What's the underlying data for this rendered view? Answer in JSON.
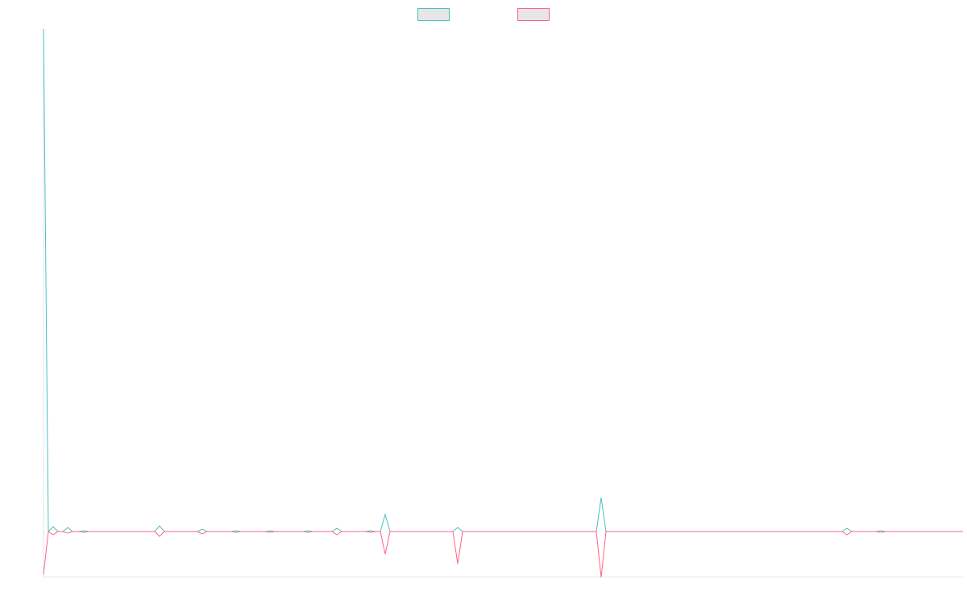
{
  "chart_data": {
    "type": "line",
    "x": [
      0,
      6,
      12,
      18,
      24,
      30,
      36,
      44,
      50,
      56,
      138,
      144,
      150,
      191,
      197,
      203,
      233,
      239,
      245,
      275,
      281,
      287,
      322,
      328,
      334,
      358,
      364,
      370,
      400,
      406,
      412,
      418,
      424,
      430,
      508,
      514,
      520,
      686,
      692,
      698,
      991,
      997,
      1003,
      1033,
      1039,
      1045,
      1141
    ],
    "xlim": [
      0,
      1141
    ],
    "ylim": [
      -57,
      624
    ],
    "legend": "top",
    "series": [
      {
        "color": "#4bc0c0",
        "values": [
          624,
          0,
          6,
          0,
          0,
          5,
          0,
          0,
          1,
          0,
          0,
          7,
          0,
          0,
          3,
          0,
          0,
          1,
          0,
          0,
          1,
          0,
          0,
          1,
          0,
          0,
          4,
          0,
          0,
          1,
          0,
          0,
          21,
          0,
          0,
          5,
          0,
          0,
          42,
          0,
          0,
          4,
          0,
          0,
          1,
          0,
          0
        ]
      },
      {
        "color": "#ff6384",
        "values": [
          -53,
          0,
          -4,
          0,
          0,
          -2,
          0,
          0,
          -1,
          0,
          0,
          -6,
          0,
          0,
          -3,
          0,
          0,
          -1,
          0,
          0,
          -1,
          0,
          0,
          -1,
          0,
          0,
          -4,
          0,
          0,
          -1,
          0,
          0,
          -28,
          0,
          0,
          -40,
          0,
          0,
          -57,
          0,
          0,
          -4,
          0,
          0,
          -1,
          0,
          0
        ]
      }
    ]
  }
}
